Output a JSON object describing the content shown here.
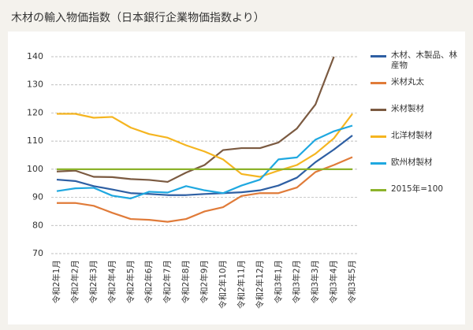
{
  "chart_data": {
    "type": "line",
    "title": "木材の輸入物価指数（日本銀行企業物価指数より）",
    "categories": [
      "令和2年1月",
      "令和2年2月",
      "令和2年3月",
      "令和2年4月",
      "令和2年5月",
      "令和2年6月",
      "令和2年7月",
      "令和2年8月",
      "令和2年9月",
      "令和2年10月",
      "令和2年11月",
      "令和2年12月",
      "令和3年1月",
      "令和3年2月",
      "令和3年3月",
      "令和3年4月",
      "令和3年5月"
    ],
    "series": [
      {
        "name": "木材、木製品、林産物",
        "color": "#2e5fa3",
        "values": [
          96.3,
          95.8,
          94.0,
          92.8,
          91.5,
          91.2,
          90.8,
          90.8,
          91.2,
          91.5,
          91.8,
          92.5,
          94.2,
          97,
          102.5,
          107,
          112
        ]
      },
      {
        "name": "米材丸太",
        "color": "#e07b39",
        "values": [
          88,
          88,
          87,
          84.5,
          82.3,
          82,
          81.3,
          82.3,
          85,
          86.5,
          90.5,
          91.5,
          91.5,
          93.5,
          99,
          101.5,
          104.3
        ]
      },
      {
        "name": "米材製材",
        "color": "#7b5a41",
        "values": [
          99.2,
          99.5,
          97.3,
          97.2,
          96.5,
          96.2,
          95.5,
          98.8,
          101.5,
          106.8,
          107.5,
          107.5,
          109.5,
          114.5,
          123,
          140,
          null
        ]
      },
      {
        "name": "北洋材製材",
        "color": "#f5b520",
        "values": [
          119.7,
          119.7,
          118.3,
          118.6,
          114.8,
          112.5,
          111.2,
          108.5,
          106.3,
          103.5,
          98.3,
          97.3,
          99.5,
          101.5,
          105.5,
          111,
          119.7
        ]
      },
      {
        "name": "欧州材製材",
        "color": "#1fa8e0",
        "values": [
          92.2,
          93.2,
          93.4,
          90.6,
          89.6,
          92,
          91.7,
          94,
          92.5,
          91.5,
          94.2,
          96.3,
          103.5,
          104.2,
          110.5,
          113.5,
          115.5
        ]
      },
      {
        "name": "2015年=100",
        "color": "#8cb32b",
        "values": [
          100,
          100,
          100,
          100,
          100,
          100,
          100,
          100,
          100,
          100,
          100,
          100,
          100,
          100,
          100,
          100,
          100
        ]
      }
    ],
    "ylim": [
      70,
      140
    ],
    "yticks": [
      70,
      80,
      90,
      100,
      110,
      120,
      130,
      140
    ],
    "grid": true
  }
}
